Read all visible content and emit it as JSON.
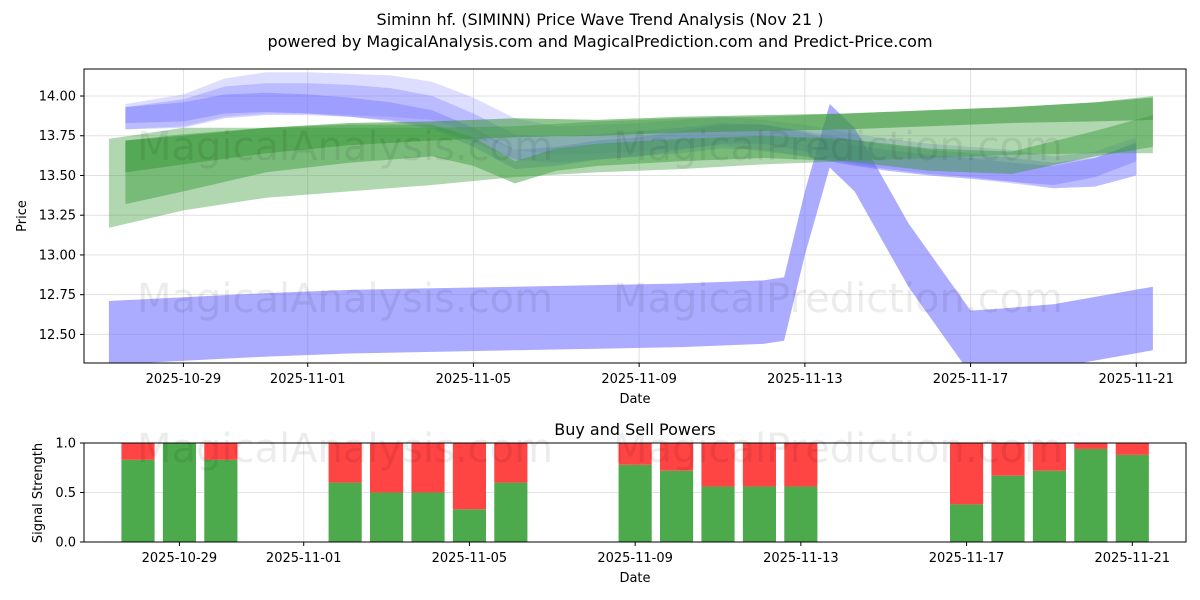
{
  "title": "Siminn hf. (SIMINN) Price Wave Trend Analysis (Nov 21 )",
  "subtitle": "powered by MagicalAnalysis.com and MagicalPrediction.com and Predict-Price.com",
  "watermarks": [
    "MagicalAnalysis.com",
    "MagicalPrediction.com"
  ],
  "colors": {
    "buy": "#4caa4c",
    "sell": "#ff4444",
    "blue_wave": "#6666ff",
    "green_wave": "#3a9a3a"
  },
  "chart_data": [
    {
      "type": "area",
      "name": "price-wave",
      "title": "",
      "xlabel": "Date",
      "ylabel": "Price",
      "ylim": [
        12.32,
        14.17
      ],
      "x_range_days": [
        -2.4,
        24.2
      ],
      "x_ticks": [
        {
          "label": "2025-10-29",
          "day": 0
        },
        {
          "label": "2025-11-01",
          "day": 3
        },
        {
          "label": "2025-11-05",
          "day": 7
        },
        {
          "label": "2025-11-09",
          "day": 11
        },
        {
          "label": "2025-11-13",
          "day": 15
        },
        {
          "label": "2025-11-17",
          "day": 19
        },
        {
          "label": "2025-11-21",
          "day": 23
        }
      ],
      "y_ticks": [
        "12.50",
        "12.75",
        "13.00",
        "13.25",
        "13.50",
        "13.75",
        "14.00"
      ],
      "y_tick_values": [
        12.5,
        12.75,
        13.0,
        13.25,
        13.5,
        13.75,
        14.0
      ],
      "grid": true,
      "blue_bands": [
        {
          "x": [
            -1.4,
            0,
            1,
            2,
            3,
            4,
            5,
            6,
            7,
            8,
            9,
            10,
            11,
            12,
            13,
            14,
            15,
            16,
            17,
            18,
            19,
            20,
            21,
            22,
            23
          ],
          "center": [
            13.87,
            13.91,
            13.99,
            14.02,
            14.02,
            14.01,
            14.0,
            13.97,
            13.88,
            13.76,
            13.72,
            13.73,
            13.74,
            13.76,
            13.78,
            13.75,
            13.72,
            13.67,
            13.63,
            13.6,
            13.58,
            13.56,
            13.52,
            13.54,
            13.62
          ],
          "width": [
            0.08,
            0.1,
            0.12,
            0.13,
            0.13,
            0.13,
            0.13,
            0.12,
            0.11,
            0.1,
            0.09,
            0.09,
            0.09,
            0.09,
            0.09,
            0.1,
            0.1,
            0.1,
            0.1,
            0.1,
            0.1,
            0.1,
            0.1,
            0.11,
            0.12
          ]
        },
        {
          "x": [
            -1.4,
            0,
            1,
            2,
            3,
            4,
            5,
            6,
            7,
            8,
            9,
            10,
            11,
            12,
            13,
            14,
            15,
            16,
            17,
            18,
            19,
            20,
            21,
            22,
            23
          ],
          "center": [
            13.86,
            13.89,
            13.96,
            13.98,
            13.98,
            13.97,
            13.95,
            13.9,
            13.8,
            13.68,
            13.66,
            13.68,
            13.7,
            13.72,
            13.75,
            13.74,
            13.7,
            13.65,
            13.61,
            13.58,
            13.56,
            13.53,
            13.5,
            13.52,
            13.6
          ],
          "width": [
            0.07,
            0.09,
            0.1,
            0.1,
            0.1,
            0.1,
            0.1,
            0.1,
            0.09,
            0.08,
            0.08,
            0.08,
            0.08,
            0.08,
            0.08,
            0.08,
            0.08,
            0.08,
            0.08,
            0.08,
            0.08,
            0.08,
            0.08,
            0.09,
            0.1
          ]
        },
        {
          "x": [
            -1.4,
            0,
            1,
            2,
            3,
            4,
            5,
            6,
            7,
            8,
            9,
            10,
            11,
            12,
            13,
            14,
            15,
            16,
            17,
            18,
            19,
            20,
            21,
            22,
            23
          ],
          "center": [
            13.88,
            13.9,
            13.95,
            13.96,
            13.95,
            13.93,
            13.9,
            13.85,
            13.74,
            13.6,
            13.62,
            13.66,
            13.68,
            13.72,
            13.76,
            13.76,
            13.71,
            13.64,
            13.6,
            13.57,
            13.55,
            13.52,
            13.5,
            13.55,
            13.65
          ],
          "width": [
            0.05,
            0.06,
            0.06,
            0.06,
            0.06,
            0.06,
            0.06,
            0.06,
            0.06,
            0.06,
            0.06,
            0.06,
            0.06,
            0.06,
            0.06,
            0.06,
            0.06,
            0.06,
            0.06,
            0.06,
            0.06,
            0.06,
            0.06,
            0.06,
            0.06
          ]
        }
      ],
      "blue_wide": {
        "x": [
          -1.8,
          2,
          4,
          6,
          8,
          10,
          12,
          14,
          14.5,
          15,
          15.6,
          16.2,
          17.5,
          19,
          19.6,
          21,
          23.4
        ],
        "center": [
          12.51,
          12.56,
          12.58,
          12.59,
          12.6,
          12.61,
          12.62,
          12.64,
          12.66,
          13.2,
          13.75,
          13.6,
          13.0,
          12.45,
          12.46,
          12.49,
          12.6
        ],
        "width": 0.2
      },
      "green_bands": [
        {
          "x": [
            -1.8,
            0,
            2,
            4,
            6,
            8,
            10,
            12,
            14,
            16,
            18,
            20,
            22,
            23.4
          ],
          "center": [
            13.45,
            13.54,
            13.58,
            13.6,
            13.62,
            13.65,
            13.68,
            13.7,
            13.72,
            13.74,
            13.76,
            13.78,
            13.8,
            13.82
          ],
          "width": [
            0.28,
            0.26,
            0.22,
            0.2,
            0.18,
            0.16,
            0.16,
            0.16,
            0.15,
            0.15,
            0.15,
            0.15,
            0.16,
            0.18
          ]
        },
        {
          "x": [
            -1.4,
            0,
            2,
            4,
            6,
            7,
            8,
            9,
            10,
            12,
            14,
            16,
            18,
            20,
            22,
            23.4
          ],
          "center": [
            13.52,
            13.58,
            13.66,
            13.7,
            13.72,
            13.65,
            13.52,
            13.6,
            13.63,
            13.66,
            13.68,
            13.66,
            13.6,
            13.58,
            13.7,
            13.78
          ],
          "width": [
            0.2,
            0.18,
            0.14,
            0.12,
            0.1,
            0.09,
            0.07,
            0.07,
            0.07,
            0.07,
            0.07,
            0.07,
            0.07,
            0.07,
            0.08,
            0.1
          ]
        },
        {
          "x": [
            -1.4,
            0,
            2,
            4,
            6,
            8,
            10,
            12,
            14,
            16,
            18,
            20,
            22,
            23.4
          ],
          "center": [
            13.62,
            13.66,
            13.72,
            13.76,
            13.78,
            13.8,
            13.8,
            13.82,
            13.83,
            13.84,
            13.86,
            13.88,
            13.9,
            13.92
          ],
          "width": [
            0.1,
            0.09,
            0.08,
            0.07,
            0.06,
            0.06,
            0.05,
            0.05,
            0.05,
            0.05,
            0.05,
            0.05,
            0.06,
            0.07
          ]
        }
      ]
    },
    {
      "type": "bar",
      "name": "buy-sell-powers",
      "title": "Buy and Sell Powers",
      "xlabel": "Date",
      "ylabel": "Signal Strength",
      "ylim": [
        0,
        1
      ],
      "x_range_days": [
        -2.4,
        24.2
      ],
      "x_ticks": [
        {
          "label": "2025-10-29",
          "day": 0
        },
        {
          "label": "2025-11-01",
          "day": 3
        },
        {
          "label": "2025-11-05",
          "day": 7
        },
        {
          "label": "2025-11-09",
          "day": 11
        },
        {
          "label": "2025-11-13",
          "day": 15
        },
        {
          "label": "2025-11-17",
          "day": 19
        },
        {
          "label": "2025-11-21",
          "day": 23
        }
      ],
      "y_ticks": [
        "0.0",
        "0.5",
        "1.0"
      ],
      "y_tick_values": [
        0,
        0.5,
        1.0
      ],
      "days": [
        -1,
        0,
        1,
        4,
        5,
        6,
        7,
        8,
        11,
        12,
        13,
        14,
        15,
        19,
        20,
        21,
        22,
        23
      ],
      "series": [
        {
          "name": "Buy",
          "values": [
            0.83,
            1.0,
            0.83,
            0.6,
            0.5,
            0.5,
            0.33,
            0.6,
            0.78,
            0.72,
            0.56,
            0.56,
            0.56,
            0.38,
            0.67,
            0.72,
            0.94,
            0.88
          ]
        },
        {
          "name": "Sell",
          "values": [
            0.17,
            0.0,
            0.17,
            0.4,
            0.5,
            0.5,
            0.67,
            0.4,
            0.22,
            0.28,
            0.44,
            0.44,
            0.44,
            0.62,
            0.33,
            0.28,
            0.06,
            0.12
          ]
        }
      ]
    }
  ]
}
